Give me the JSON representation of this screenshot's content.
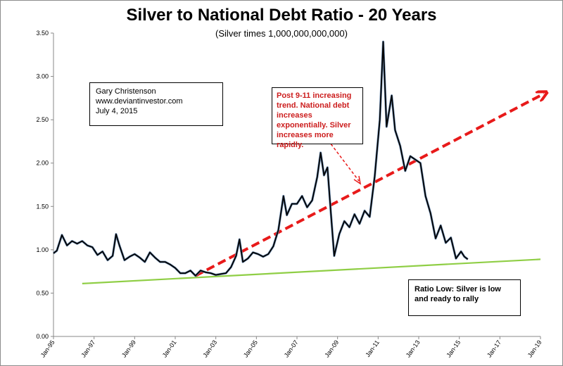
{
  "chart_data": {
    "type": "line",
    "title": "Silver to National Debt Ratio - 20 Years",
    "subtitle": "(Silver times 1,000,000,000,000)",
    "xlabel": "",
    "ylabel": "",
    "ylim": [
      0,
      3.5
    ],
    "yticks": [
      "0.00",
      "0.50",
      "1.00",
      "1.50",
      "2.00",
      "2.50",
      "3.00",
      "3.50"
    ],
    "xticks": [
      "Jan-95",
      "Jan-97",
      "Jan-99",
      "Jan-01",
      "Jan-03",
      "Jan-05",
      "Jan-07",
      "Jan-09",
      "Jan-11",
      "Jan-13",
      "Jan-15",
      "Jan-17",
      "Jan-19"
    ],
    "grid": false,
    "series": [
      {
        "name": "",
        "color": "#000000",
        "points": [
          [
            "1995-01",
            0.96
          ],
          [
            "1995-03",
            0.99
          ],
          [
            "1995-06",
            1.17
          ],
          [
            "1995-09",
            1.05
          ],
          [
            "1995-12",
            1.1
          ],
          [
            "1996-03",
            1.07
          ],
          [
            "1996-06",
            1.1
          ],
          [
            "1996-09",
            1.05
          ],
          [
            "1996-12",
            1.03
          ],
          [
            "1997-03",
            0.94
          ],
          [
            "1997-06",
            0.98
          ],
          [
            "1997-09",
            0.88
          ],
          [
            "1997-12",
            0.93
          ],
          [
            "1998-02",
            1.18
          ],
          [
            "1998-04",
            1.05
          ],
          [
            "1998-07",
            0.88
          ],
          [
            "1998-10",
            0.92
          ],
          [
            "1999-01",
            0.95
          ],
          [
            "1999-04",
            0.91
          ],
          [
            "1999-07",
            0.86
          ],
          [
            "1999-10",
            0.97
          ],
          [
            "2000-01",
            0.91
          ],
          [
            "2000-04",
            0.86
          ],
          [
            "2000-07",
            0.86
          ],
          [
            "2000-10",
            0.83
          ],
          [
            "2001-01",
            0.79
          ],
          [
            "2001-04",
            0.73
          ],
          [
            "2001-07",
            0.73
          ],
          [
            "2001-10",
            0.76
          ],
          [
            "2002-01",
            0.7
          ],
          [
            "2002-04",
            0.76
          ],
          [
            "2002-07",
            0.74
          ],
          [
            "2002-10",
            0.73
          ],
          [
            "2003-01",
            0.71
          ],
          [
            "2003-04",
            0.72
          ],
          [
            "2003-07",
            0.73
          ],
          [
            "2003-10",
            0.8
          ],
          [
            "2004-01",
            0.93
          ],
          [
            "2004-03",
            1.12
          ],
          [
            "2004-05",
            0.86
          ],
          [
            "2004-08",
            0.9
          ],
          [
            "2004-11",
            0.97
          ],
          [
            "2005-02",
            0.95
          ],
          [
            "2005-05",
            0.92
          ],
          [
            "2005-08",
            0.95
          ],
          [
            "2005-11",
            1.04
          ],
          [
            "2006-02",
            1.23
          ],
          [
            "2006-05",
            1.62
          ],
          [
            "2006-07",
            1.4
          ],
          [
            "2006-10",
            1.53
          ],
          [
            "2007-01",
            1.53
          ],
          [
            "2007-04",
            1.62
          ],
          [
            "2007-07",
            1.49
          ],
          [
            "2007-10",
            1.57
          ],
          [
            "2008-01",
            1.84
          ],
          [
            "2008-03",
            2.12
          ],
          [
            "2008-05",
            1.86
          ],
          [
            "2008-07",
            1.95
          ],
          [
            "2008-09",
            1.43
          ],
          [
            "2008-11",
            0.93
          ],
          [
            "2009-02",
            1.18
          ],
          [
            "2009-05",
            1.33
          ],
          [
            "2009-08",
            1.26
          ],
          [
            "2009-11",
            1.41
          ],
          [
            "2010-02",
            1.3
          ],
          [
            "2010-05",
            1.45
          ],
          [
            "2010-08",
            1.38
          ],
          [
            "2010-11",
            1.85
          ],
          [
            "2011-02",
            2.5
          ],
          [
            "2011-04",
            3.4
          ],
          [
            "2011-06",
            2.42
          ],
          [
            "2011-09",
            2.78
          ],
          [
            "2011-11",
            2.38
          ],
          [
            "2012-02",
            2.2
          ],
          [
            "2012-05",
            1.91
          ],
          [
            "2012-08",
            2.08
          ],
          [
            "2012-11",
            2.04
          ],
          [
            "2013-02",
            2.0
          ],
          [
            "2013-05",
            1.62
          ],
          [
            "2013-08",
            1.42
          ],
          [
            "2013-11",
            1.13
          ],
          [
            "2014-02",
            1.28
          ],
          [
            "2014-05",
            1.08
          ],
          [
            "2014-08",
            1.14
          ],
          [
            "2014-11",
            0.9
          ],
          [
            "2015-02",
            0.98
          ],
          [
            "2015-04",
            0.92
          ],
          [
            "2015-06",
            0.89
          ]
        ]
      }
    ],
    "overlays": [
      {
        "name": "Post 9-11 increasing trend",
        "style": "dashed-arrow",
        "color": "#e81a1a",
        "from": [
          "2002-01",
          0.7
        ],
        "to": [
          "2019-03",
          2.8
        ]
      },
      {
        "name": "Ratio low trend",
        "style": "solid",
        "color": "#8fce45",
        "from": [
          "1996-06",
          0.61
        ],
        "to": [
          "2019-01",
          0.89
        ]
      }
    ],
    "annotations": {
      "credit": [
        "Gary Christenson",
        "www.deviantinvestor.com",
        "July 4, 2015"
      ],
      "note": "Post 9-11 increasing trend.  National debt increases exponentially.  Silver increases more rapidly.",
      "low": "Ratio Low: Silver  is low and ready to rally"
    },
    "colors": {
      "line": "#000000",
      "arrow": "#e81a1a",
      "support": "#8fce45",
      "note_text": "#cc1d1d"
    }
  }
}
